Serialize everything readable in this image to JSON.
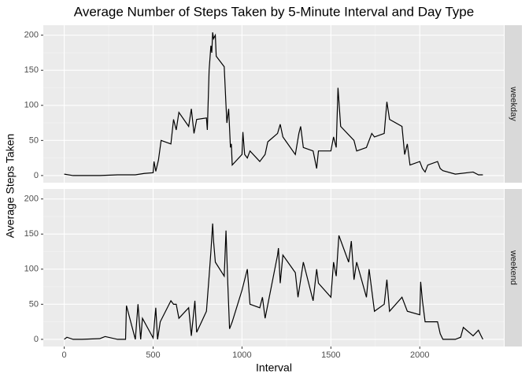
{
  "chart_data": {
    "type": "line",
    "facet_by_series": true,
    "title": "Average Number of Steps Taken by 5-Minute Interval and Day Type",
    "x_label": "Interval",
    "y_label": "Average Steps Taken",
    "xlim": [
      -117.75,
      2472.75
    ],
    "xticks": [
      0,
      500,
      1000,
      1500,
      2000
    ],
    "ylim": [
      -10.2,
      214.2
    ],
    "yticks": [
      0,
      50,
      100,
      150,
      200
    ],
    "grid": true,
    "series": [
      {
        "name": "weekday",
        "color": "#000000",
        "x": [
          0,
          50,
          100,
          200,
          300,
          400,
          450,
          500,
          505,
          515,
          530,
          545,
          600,
          615,
          630,
          645,
          700,
          715,
          730,
          745,
          800,
          805,
          815,
          825,
          830,
          835,
          840,
          850,
          855,
          900,
          910,
          915,
          925,
          935,
          940,
          945,
          1000,
          1005,
          1015,
          1030,
          1045,
          1100,
          1130,
          1145,
          1200,
          1215,
          1230,
          1300,
          1320,
          1330,
          1345,
          1400,
          1420,
          1430,
          1500,
          1515,
          1530,
          1540,
          1555,
          1630,
          1645,
          1700,
          1730,
          1745,
          1800,
          1815,
          1830,
          1900,
          1915,
          1930,
          1945,
          2000,
          2015,
          2030,
          2045,
          2100,
          2115,
          2130,
          2200,
          2300,
          2330,
          2355
        ],
        "values": [
          2,
          0,
          0,
          0,
          1,
          1,
          3,
          4,
          20,
          6,
          22,
          50,
          45,
          80,
          65,
          90,
          70,
          95,
          60,
          80,
          82,
          65,
          150,
          185,
          175,
          204,
          195,
          200,
          170,
          155,
          100,
          75,
          95,
          40,
          45,
          15,
          30,
          62,
          30,
          25,
          35,
          20,
          30,
          48,
          60,
          73,
          55,
          30,
          60,
          70,
          40,
          35,
          10,
          35,
          35,
          55,
          40,
          125,
          70,
          50,
          35,
          40,
          60,
          55,
          60,
          105,
          80,
          70,
          30,
          45,
          15,
          20,
          10,
          5,
          15,
          20,
          10,
          7,
          2,
          5,
          1,
          1
        ]
      },
      {
        "name": "weekend",
        "color": "#000000",
        "x": [
          0,
          15,
          50,
          100,
          200,
          230,
          300,
          345,
          350,
          400,
          415,
          430,
          440,
          500,
          515,
          525,
          540,
          600,
          615,
          630,
          645,
          700,
          715,
          735,
          745,
          800,
          815,
          825,
          835,
          840,
          850,
          900,
          910,
          920,
          930,
          945,
          1000,
          1030,
          1045,
          1100,
          1115,
          1130,
          1200,
          1205,
          1215,
          1230,
          1300,
          1315,
          1345,
          1400,
          1420,
          1430,
          1500,
          1515,
          1530,
          1545,
          1600,
          1615,
          1630,
          1645,
          1700,
          1715,
          1745,
          1800,
          1815,
          1830,
          1900,
          1930,
          2000,
          2005,
          2015,
          2030,
          2100,
          2115,
          2130,
          2200,
          2230,
          2245,
          2300,
          2330,
          2345,
          2355
        ],
        "values": [
          0,
          3,
          0,
          0,
          1,
          4,
          0,
          0,
          48,
          0,
          50,
          0,
          30,
          2,
          45,
          0,
          25,
          55,
          50,
          50,
          30,
          45,
          5,
          55,
          10,
          40,
          90,
          125,
          165,
          140,
          110,
          90,
          155,
          80,
          15,
          25,
          70,
          100,
          50,
          45,
          60,
          30,
          120,
          130,
          80,
          120,
          95,
          60,
          110,
          55,
          100,
          80,
          60,
          110,
          90,
          148,
          110,
          140,
          85,
          110,
          60,
          100,
          40,
          50,
          85,
          40,
          60,
          40,
          35,
          82,
          55,
          25,
          25,
          8,
          0,
          0,
          3,
          17,
          5,
          13,
          5,
          0
        ]
      }
    ]
  }
}
